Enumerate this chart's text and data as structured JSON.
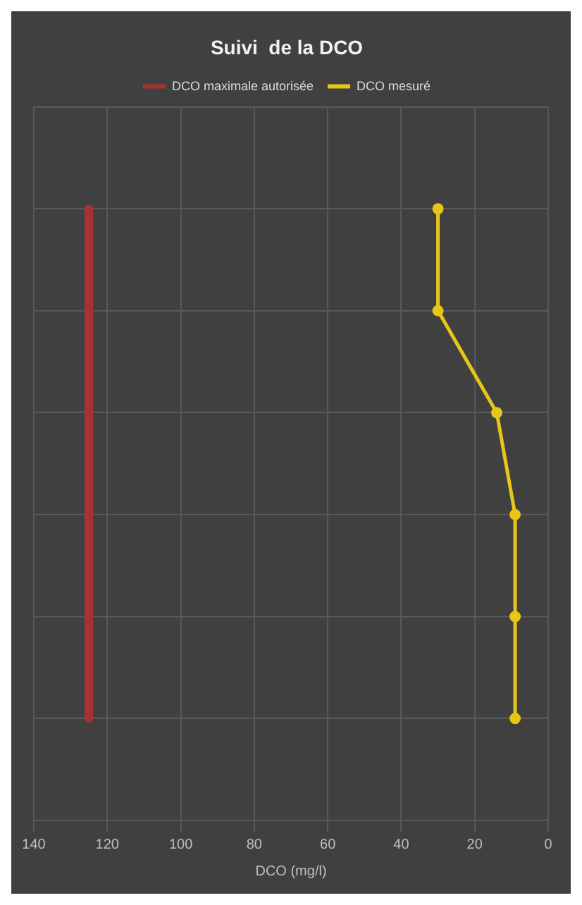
{
  "chart_data": {
    "type": "line",
    "orientation": "horizontal",
    "title": "Suivi  de la DCO",
    "xlabel": "DCO (mg/l)",
    "categories": [
      null,
      null,
      null,
      null,
      null,
      null,
      null,
      null
    ],
    "series": [
      {
        "name": "DCO maximale autorisée",
        "color": "#a83232",
        "values": [
          null,
          125,
          125,
          125,
          125,
          125,
          125,
          null
        ],
        "marker": "none"
      },
      {
        "name": "DCO mesuré",
        "color": "#e6c619",
        "values": [
          null,
          30,
          30,
          14,
          9,
          9,
          9,
          null
        ]
      }
    ],
    "xlim": [
      140,
      0
    ],
    "xticks": [
      0,
      20,
      40,
      60,
      80,
      100,
      120,
      140
    ],
    "grid": true,
    "legend": "top",
    "marker": "circle"
  }
}
